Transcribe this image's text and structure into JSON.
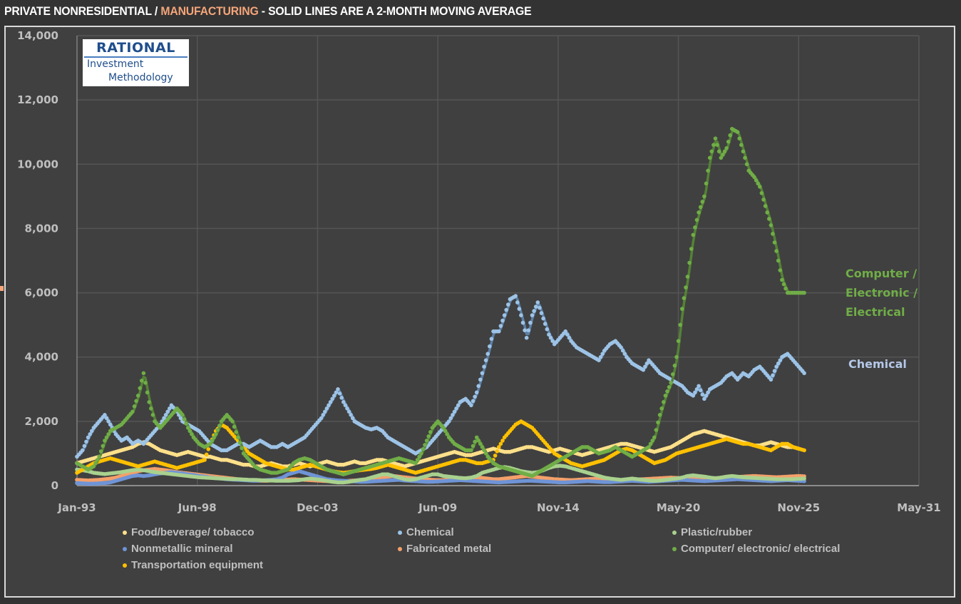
{
  "title": {
    "part1": "PRIVATE NONRESIDENTIAL / ",
    "part2": "MANUFACTURING",
    "part3": " - SOLID LINES ARE A 2-MONTH MOVING AVERAGE"
  },
  "logo": {
    "line1": "RATIONAL",
    "line2": "Investment",
    "line3": "Methodology"
  },
  "annotations": {
    "computer": [
      "Computer /",
      "Electronic /",
      "Electrical"
    ],
    "chemical": "Chemical"
  },
  "colors": {
    "accent": "#f4a57a",
    "food": "#ffe08a",
    "chemical": "#9dc3e6",
    "plastic": "#a9d18e",
    "nonmetallic": "#6f94d6",
    "fabricated": "#f4a06a",
    "computer": "#70ad47",
    "transportation": "#ffc000"
  },
  "chart_data": {
    "type": "scatter+line",
    "title": "PRIVATE NONRESIDENTIAL / MANUFACTURING - SOLID LINES ARE A 2-MONTH MOVING AVERAGE",
    "xlabel": "",
    "ylabel": "",
    "ylim": [
      0,
      14000
    ],
    "yticks": [
      0,
      2000,
      4000,
      6000,
      8000,
      10000,
      12000,
      14000
    ],
    "ytick_labels": [
      "0",
      "2,000",
      "4,000",
      "6,000",
      "8,000",
      "10,000",
      "12,000",
      "14,000"
    ],
    "xlim": [
      "Jan-93",
      "May-31"
    ],
    "xticks": [
      "Jan-93",
      "Jun-98",
      "Dec-03",
      "Jun-09",
      "Nov-14",
      "May-20",
      "Nov-25",
      "May-31"
    ],
    "grid": true,
    "legend_position": "bottom",
    "x_start": "Jan-93",
    "x_step_months": 3,
    "series": [
      {
        "name": "Food/beverage/ tobacco",
        "key": "food",
        "line": false,
        "values": [
          700,
          750,
          800,
          850,
          900,
          950,
          1000,
          1050,
          1100,
          1150,
          1200,
          1300,
          1350,
          1300,
          1200,
          1100,
          1050,
          1000,
          950,
          1000,
          1050,
          1000,
          950,
          900,
          900,
          850,
          800,
          800,
          750,
          700,
          650,
          650,
          600,
          600,
          650,
          700,
          650,
          600,
          600,
          650,
          700,
          650,
          600,
          650,
          700,
          750,
          700,
          650,
          650,
          700,
          750,
          700,
          700,
          750,
          800,
          800,
          750,
          700,
          650,
          600,
          650,
          700,
          750,
          800,
          850,
          900,
          950,
          1000,
          1050,
          1000,
          950,
          950,
          1000,
          1050,
          1100,
          1150,
          1100,
          1050,
          1050,
          1100,
          1150,
          1200,
          1200,
          1150,
          1100,
          1050,
          1100,
          1150,
          1100,
          1050,
          1000,
          950,
          1000,
          1050,
          1100,
          1150,
          1200,
          1250,
          1300,
          1300,
          1250,
          1200,
          1150,
          1100,
          1050,
          1100,
          1150,
          1200,
          1300,
          1400,
          1500,
          1600,
          1650,
          1700,
          1650,
          1600,
          1550,
          1500,
          1450,
          1400,
          1350,
          1300,
          1250,
          1250,
          1300,
          1350,
          1300,
          1250,
          1200,
          1200,
          1150
        ]
      },
      {
        "name": "Chemical",
        "key": "chemical",
        "line": true,
        "values": [
          900,
          1100,
          1500,
          1800,
          2000,
          2200,
          1900,
          1600,
          1400,
          1500,
          1300,
          1400,
          1300,
          1500,
          1700,
          1900,
          2200,
          2500,
          2300,
          2000,
          1900,
          1800,
          1700,
          1500,
          1300,
          1200,
          1100,
          1100,
          1200,
          1300,
          1300,
          1200,
          1300,
          1400,
          1300,
          1200,
          1200,
          1300,
          1200,
          1300,
          1400,
          1500,
          1700,
          1900,
          2100,
          2400,
          2700,
          3000,
          2600,
          2300,
          2000,
          1900,
          1800,
          1750,
          1800,
          1700,
          1500,
          1400,
          1300,
          1200,
          1100,
          1000,
          1100,
          1200,
          1400,
          1600,
          1800,
          2000,
          2300,
          2600,
          2700,
          2500,
          2900,
          3500,
          4100,
          4800,
          4800,
          5300,
          5800,
          5900,
          5300,
          4600,
          5300,
          5700,
          5200,
          4700,
          4400,
          4600,
          4800,
          4500,
          4300,
          4200,
          4100,
          4000,
          3900,
          4200,
          4400,
          4500,
          4300,
          4000,
          3800,
          3700,
          3600,
          3900,
          3700,
          3500,
          3400,
          3300,
          3200,
          3100,
          2900,
          2800,
          3100,
          2700,
          3000,
          3100,
          3200,
          3400,
          3500,
          3300,
          3500,
          3400,
          3600,
          3700,
          3500,
          3300,
          3700,
          4000,
          4100,
          3900,
          3700,
          3500
        ]
      },
      {
        "name": "Plastic/rubber",
        "key": "plastic",
        "line": false,
        "values": [
          500,
          480,
          450,
          400,
          380,
          360,
          380,
          400,
          420,
          450,
          480,
          500,
          480,
          450,
          420,
          400,
          380,
          360,
          340,
          320,
          300,
          280,
          260,
          250,
          240,
          230,
          220,
          210,
          200,
          200,
          190,
          180,
          180,
          170,
          160,
          160,
          150,
          150,
          150,
          160,
          170,
          200,
          220,
          200,
          180,
          150,
          120,
          100,
          100,
          120,
          150,
          180,
          200,
          250,
          300,
          350,
          350,
          300,
          250,
          200,
          180,
          200,
          250,
          300,
          350,
          350,
          300,
          280,
          260,
          240,
          230,
          250,
          300,
          400,
          450,
          500,
          550,
          580,
          550,
          500,
          450,
          420,
          400,
          420,
          480,
          550,
          600,
          620,
          600,
          550,
          500,
          450,
          400,
          350,
          300,
          250,
          220,
          200,
          180,
          200,
          220,
          200,
          180,
          160,
          150,
          160,
          180,
          200,
          220,
          250,
          300,
          320,
          300,
          280,
          250,
          230,
          250,
          280,
          300,
          280,
          260,
          250,
          240,
          230,
          220,
          210,
          200,
          200,
          200,
          200,
          210,
          220
        ]
      },
      {
        "name": "Nonmetallic mineral",
        "key": "nonmetallic",
        "line": false,
        "values": [
          80,
          70,
          60,
          60,
          70,
          80,
          100,
          150,
          200,
          250,
          300,
          320,
          300,
          320,
          350,
          380,
          400,
          420,
          400,
          380,
          350,
          330,
          300,
          280,
          250,
          230,
          220,
          200,
          190,
          180,
          170,
          160,
          150,
          160,
          170,
          180,
          200,
          250,
          350,
          400,
          450,
          400,
          350,
          300,
          250,
          200,
          180,
          160,
          150,
          140,
          130,
          120,
          120,
          130,
          140,
          150,
          160,
          170,
          180,
          160,
          150,
          140,
          130,
          120,
          120,
          130,
          140,
          150,
          160,
          170,
          160,
          150,
          140,
          130,
          120,
          110,
          100,
          110,
          120,
          130,
          140,
          150,
          150,
          140,
          130,
          120,
          110,
          100,
          100,
          110,
          120,
          130,
          140,
          130,
          120,
          110,
          110,
          120,
          130,
          140,
          150,
          140,
          130,
          120,
          130,
          140,
          150,
          160,
          170,
          180,
          170,
          160,
          150,
          140,
          150,
          160,
          170,
          180,
          190,
          200,
          190,
          180,
          170,
          160,
          150,
          140,
          150,
          160,
          170,
          160,
          150,
          140
        ]
      },
      {
        "name": "Fabricated metal",
        "key": "fabricated",
        "line": false,
        "values": [
          180,
          170,
          160,
          170,
          180,
          200,
          220,
          250,
          300,
          350,
          400,
          450,
          480,
          500,
          520,
          500,
          480,
          450,
          420,
          400,
          380,
          360,
          340,
          320,
          300,
          280,
          260,
          240,
          220,
          200,
          180,
          170,
          160,
          150,
          150,
          160,
          170,
          180,
          190,
          200,
          190,
          180,
          170,
          160,
          150,
          140,
          130,
          130,
          140,
          150,
          160,
          170,
          180,
          200,
          220,
          250,
          280,
          300,
          280,
          260,
          240,
          220,
          200,
          190,
          180,
          170,
          170,
          180,
          190,
          200,
          220,
          240,
          260,
          240,
          220,
          200,
          200,
          220,
          240,
          260,
          280,
          300,
          280,
          260,
          240,
          220,
          200,
          190,
          180,
          170,
          180,
          190,
          200,
          210,
          220,
          200,
          190,
          180,
          170,
          170,
          180,
          190,
          200,
          210,
          220,
          230,
          240,
          250,
          240,
          230,
          220,
          210,
          200,
          210,
          220,
          230,
          240,
          250,
          260,
          270,
          280,
          290,
          300,
          290,
          280,
          270,
          260,
          270,
          280,
          290,
          300,
          290
        ]
      },
      {
        "name": "Computer/ electronic/ electrical",
        "key": "computer",
        "line": true,
        "values": [
          700,
          600,
          500,
          600,
          900,
          1400,
          1700,
          1800,
          1900,
          2100,
          2300,
          2800,
          3500,
          2600,
          2000,
          1800,
          2000,
          2200,
          2400,
          2200,
          1800,
          1500,
          1300,
          1200,
          1300,
          1600,
          2000,
          2200,
          2000,
          1500,
          1000,
          800,
          600,
          500,
          450,
          400,
          400,
          450,
          500,
          700,
          800,
          850,
          800,
          700,
          600,
          500,
          450,
          400,
          350,
          400,
          450,
          500,
          550,
          600,
          650,
          700,
          750,
          800,
          850,
          800,
          750,
          700,
          1000,
          1400,
          1800,
          2000,
          1800,
          1500,
          1300,
          1200,
          1100,
          1100,
          1500,
          1200,
          900,
          700,
          600,
          550,
          500,
          450,
          400,
          350,
          300,
          400,
          500,
          600,
          700,
          800,
          900,
          1000,
          1100,
          1200,
          1200,
          1100,
          1000,
          1050,
          1100,
          1200,
          1100,
          1000,
          900,
          1000,
          1100,
          1200,
          1500,
          2200,
          2800,
          3200,
          4000,
          5500,
          6500,
          7800,
          8500,
          9000,
          10200,
          10800,
          10200,
          10500,
          11100,
          11000,
          10400,
          9800,
          9600,
          9300,
          8700,
          8100,
          7300,
          6400,
          6000,
          6000,
          6000,
          6000
        ]
      },
      {
        "name": "Transportation equipment",
        "key": "transportation",
        "line": false,
        "values": [
          400,
          500,
          600,
          700,
          750,
          800,
          850,
          800,
          750,
          700,
          650,
          600,
          650,
          700,
          750,
          700,
          650,
          600,
          550,
          600,
          650,
          700,
          750,
          800,
          1300,
          1700,
          1900,
          1800,
          1600,
          1400,
          1200,
          1000,
          900,
          800,
          700,
          650,
          600,
          550,
          500,
          500,
          550,
          600,
          650,
          600,
          550,
          500,
          450,
          420,
          400,
          420,
          450,
          480,
          500,
          520,
          550,
          600,
          650,
          600,
          550,
          500,
          450,
          400,
          450,
          500,
          550,
          600,
          650,
          700,
          750,
          800,
          800,
          750,
          700,
          700,
          750,
          800,
          1200,
          1500,
          1700,
          1900,
          2000,
          1900,
          1800,
          1600,
          1400,
          1200,
          1000,
          900,
          800,
          700,
          650,
          600,
          650,
          700,
          750,
          800,
          900,
          1000,
          1100,
          1150,
          1100,
          1000,
          900,
          800,
          700,
          750,
          800,
          900,
          1000,
          1050,
          1100,
          1150,
          1200,
          1250,
          1300,
          1350,
          1400,
          1450,
          1400,
          1350,
          1300,
          1300,
          1250,
          1200,
          1150,
          1100,
          1200,
          1300,
          1300,
          1200,
          1150,
          1100
        ]
      }
    ]
  },
  "legend": {
    "items": [
      {
        "label": "Food/beverage/ tobacco",
        "key": "food"
      },
      {
        "label": "Chemical",
        "key": "chemical"
      },
      {
        "label": "Plastic/rubber",
        "key": "plastic"
      },
      {
        "label": "Nonmetallic mineral",
        "key": "nonmetallic"
      },
      {
        "label": "Fabricated metal",
        "key": "fabricated"
      },
      {
        "label": "Computer/ electronic/ electrical",
        "key": "computer"
      },
      {
        "label": "Transportation equipment",
        "key": "transportation"
      }
    ]
  }
}
